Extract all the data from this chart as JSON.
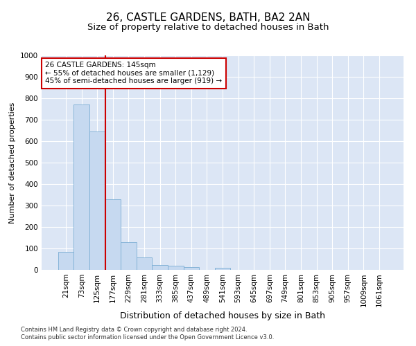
{
  "title1": "26, CASTLE GARDENS, BATH, BA2 2AN",
  "title2": "Size of property relative to detached houses in Bath",
  "xlabel": "Distribution of detached houses by size in Bath",
  "ylabel": "Number of detached properties",
  "categories": [
    "21sqm",
    "73sqm",
    "125sqm",
    "177sqm",
    "229sqm",
    "281sqm",
    "333sqm",
    "385sqm",
    "437sqm",
    "489sqm",
    "541sqm",
    "593sqm",
    "645sqm",
    "697sqm",
    "749sqm",
    "801sqm",
    "853sqm",
    "905sqm",
    "957sqm",
    "1009sqm",
    "1061sqm"
  ],
  "values": [
    83,
    770,
    645,
    330,
    130,
    58,
    22,
    18,
    12,
    0,
    9,
    0,
    0,
    0,
    0,
    0,
    0,
    0,
    0,
    0,
    0
  ],
  "bar_color": "#c6d9f0",
  "bar_edge_color": "#7badd4",
  "property_line_x": 2.5,
  "annotation_text": "26 CASTLE GARDENS: 145sqm\n← 55% of detached houses are smaller (1,129)\n45% of semi-detached houses are larger (919) →",
  "annotation_box_color": "#ffffff",
  "annotation_box_edge_color": "#cc0000",
  "line_color": "#cc0000",
  "ylim": [
    0,
    1000
  ],
  "yticks": [
    0,
    100,
    200,
    300,
    400,
    500,
    600,
    700,
    800,
    900,
    1000
  ],
  "footer1": "Contains HM Land Registry data © Crown copyright and database right 2024.",
  "footer2": "Contains public sector information licensed under the Open Government Licence v3.0.",
  "background_color": "#dce6f5",
  "title1_fontsize": 11,
  "title2_fontsize": 9.5,
  "xlabel_fontsize": 9,
  "ylabel_fontsize": 8,
  "tick_fontsize": 7.5,
  "footer_fontsize": 6,
  "annotation_fontsize": 7.5
}
